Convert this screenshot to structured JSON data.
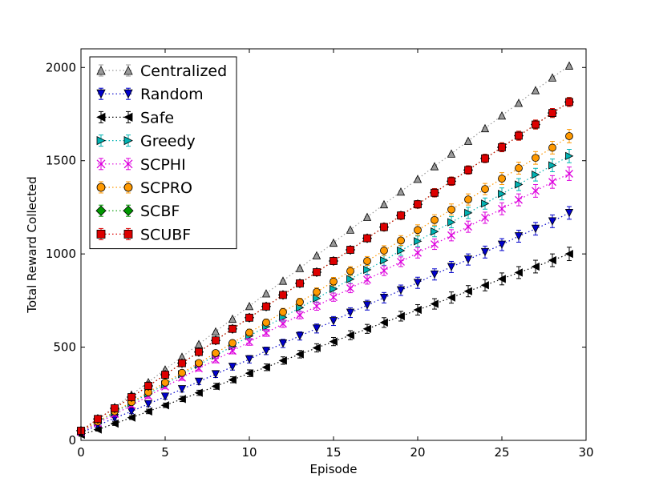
{
  "chart_data": {
    "type": "scatter",
    "xlabel": "Episode",
    "ylabel": "Total Reward Collected",
    "xlim": [
      0,
      30
    ],
    "ylim": [
      0,
      2100
    ],
    "xticks": [
      "0",
      "5",
      "10",
      "15",
      "20",
      "25",
      "30"
    ],
    "yticks": [
      "0",
      "500",
      "1000",
      "1500",
      "2000"
    ],
    "grid": false,
    "legend_position": "top-left",
    "x": [
      0,
      1,
      2,
      3,
      4,
      5,
      6,
      7,
      8,
      9,
      10,
      11,
      12,
      13,
      14,
      15,
      16,
      17,
      18,
      19,
      20,
      21,
      22,
      23,
      24,
      25,
      26,
      27,
      28,
      29
    ],
    "series": [
      {
        "name": "Centralized",
        "color": "#9a9a9a",
        "marker": "triangle-up",
        "values": [
          50,
          112,
          178,
          245,
          312,
          380,
          448,
          516,
          584,
          652,
          720,
          788,
          856,
          924,
          992,
          1060,
          1130,
          1198,
          1266,
          1334,
          1402,
          1470,
          1538,
          1606,
          1674,
          1742,
          1810,
          1878,
          1946,
          2010
        ],
        "error": [
          3,
          3,
          3,
          3,
          3,
          3,
          3,
          3,
          3,
          3,
          3,
          3,
          3,
          3,
          3,
          3,
          3,
          3,
          3,
          3,
          3,
          3,
          3,
          3,
          3,
          3,
          3,
          3,
          3,
          3
        ]
      },
      {
        "name": "Random",
        "color": "#0000cc",
        "marker": "triangle-down",
        "values": [
          40,
          80,
          120,
          155,
          195,
          235,
          275,
          315,
          355,
          395,
          435,
          480,
          520,
          560,
          600,
          640,
          685,
          725,
          765,
          805,
          845,
          890,
          930,
          970,
          1010,
          1050,
          1095,
          1135,
          1175,
          1220
        ],
        "error": [
          10,
          10,
          12,
          12,
          14,
          14,
          16,
          16,
          18,
          18,
          20,
          20,
          22,
          22,
          24,
          24,
          26,
          26,
          28,
          28,
          30,
          30,
          30,
          30,
          32,
          32,
          32,
          34,
          34,
          34
        ]
      },
      {
        "name": "Safe",
        "color": "#000000",
        "marker": "triangle-left",
        "values": [
          30,
          58,
          90,
          122,
          155,
          188,
          222,
          255,
          290,
          325,
          360,
          392,
          428,
          462,
          496,
          530,
          564,
          598,
          632,
          666,
          700,
          732,
          766,
          800,
          832,
          866,
          900,
          932,
          966,
          1000
        ],
        "error": [
          8,
          8,
          10,
          10,
          12,
          12,
          14,
          14,
          16,
          16,
          18,
          18,
          20,
          20,
          22,
          22,
          24,
          24,
          26,
          26,
          28,
          28,
          30,
          30,
          30,
          32,
          32,
          34,
          34,
          36
        ]
      },
      {
        "name": "Greedy",
        "color": "#00b3b3",
        "marker": "triangle-right",
        "values": [
          48,
          98,
          150,
          200,
          250,
          300,
          355,
          405,
          455,
          505,
          560,
          610,
          660,
          712,
          762,
          812,
          865,
          915,
          965,
          1018,
          1068,
          1120,
          1170,
          1220,
          1270,
          1322,
          1372,
          1425,
          1475,
          1525
        ],
        "error": [
          8,
          8,
          10,
          10,
          12,
          12,
          14,
          14,
          16,
          16,
          18,
          18,
          20,
          20,
          22,
          22,
          24,
          24,
          26,
          26,
          28,
          28,
          30,
          30,
          30,
          32,
          32,
          34,
          34,
          36
        ]
      },
      {
        "name": "SCPHI",
        "color": "#dd00dd",
        "marker": "x",
        "values": [
          45,
          92,
          140,
          188,
          238,
          288,
          336,
          386,
          432,
          480,
          528,
          576,
          626,
          672,
          720,
          768,
          816,
          862,
          910,
          958,
          1006,
          1052,
          1100,
          1146,
          1194,
          1242,
          1290,
          1338,
          1386,
          1430
        ],
        "error": [
          8,
          8,
          10,
          10,
          12,
          12,
          14,
          14,
          16,
          16,
          18,
          18,
          20,
          20,
          22,
          22,
          24,
          24,
          26,
          26,
          28,
          28,
          30,
          30,
          30,
          32,
          32,
          34,
          34,
          36
        ]
      },
      {
        "name": "SCPRO",
        "color": "#ff9900",
        "marker": "circle",
        "values": [
          50,
          100,
          155,
          205,
          258,
          310,
          362,
          415,
          468,
          522,
          578,
          632,
          688,
          742,
          796,
          852,
          908,
          962,
          1018,
          1072,
          1128,
          1182,
          1238,
          1292,
          1348,
          1404,
          1460,
          1515,
          1570,
          1632
        ],
        "error": [
          8,
          8,
          10,
          10,
          12,
          12,
          14,
          14,
          16,
          16,
          18,
          18,
          20,
          20,
          22,
          22,
          24,
          24,
          26,
          26,
          28,
          28,
          30,
          30,
          30,
          32,
          32,
          34,
          34,
          36
        ]
      },
      {
        "name": "SCBF",
        "color": "#009900",
        "marker": "diamond",
        "values": [
          52,
          115,
          172,
          232,
          292,
          352,
          414,
          474,
          536,
          598,
          658,
          718,
          780,
          842,
          902,
          962,
          1022,
          1084,
          1144,
          1206,
          1266,
          1328,
          1390,
          1450,
          1512,
          1572,
          1634,
          1694,
          1756,
          1815
        ],
        "error": [
          6,
          6,
          8,
          8,
          10,
          10,
          12,
          12,
          12,
          14,
          14,
          14,
          16,
          16,
          16,
          18,
          18,
          18,
          20,
          20,
          20,
          22,
          22,
          22,
          22,
          24,
          24,
          24,
          24,
          24
        ]
      },
      {
        "name": "SCUBF",
        "color": "#dd0000",
        "marker": "square",
        "values": [
          52,
          115,
          172,
          232,
          292,
          352,
          414,
          474,
          536,
          598,
          658,
          718,
          780,
          842,
          902,
          962,
          1022,
          1084,
          1144,
          1206,
          1266,
          1328,
          1390,
          1450,
          1512,
          1572,
          1634,
          1694,
          1756,
          1815
        ],
        "error": [
          6,
          6,
          8,
          8,
          10,
          10,
          12,
          12,
          12,
          14,
          14,
          14,
          16,
          16,
          16,
          18,
          18,
          18,
          20,
          20,
          20,
          22,
          22,
          22,
          22,
          24,
          24,
          24,
          24,
          24
        ]
      }
    ]
  }
}
